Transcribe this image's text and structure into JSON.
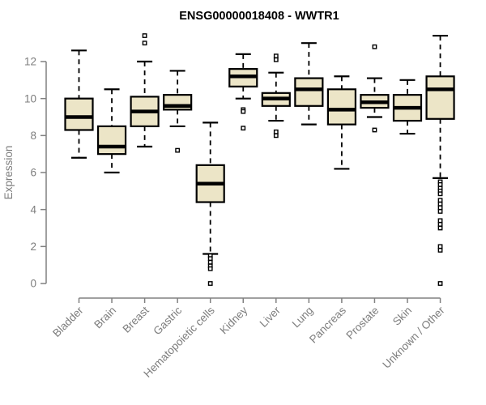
{
  "title": "ENSG00000018408 - WWTR1",
  "colors": {
    "background": "#ffffff",
    "box_fill": "#ECE5C7",
    "box_border": "#000000",
    "median": "#000000",
    "whisker": "#000000",
    "outlier_stroke": "#000000",
    "outlier_fill": "#ffffff",
    "axis": "#808080",
    "label": "#7d7d7d",
    "title": "#000000"
  },
  "chart_data": {
    "type": "boxplot",
    "title": "ENSG00000018408 - WWTR1",
    "xlabel": "",
    "ylabel": "Expression",
    "ylim": [
      0,
      13.5
    ],
    "yticks": [
      0,
      2,
      4,
      6,
      8,
      10,
      12
    ],
    "grid": false,
    "legend": "none",
    "categories": [
      "Bladder",
      "Brain",
      "Breast",
      "Gastric",
      "Hematopoietic cells",
      "Kidney",
      "Liver",
      "Lung",
      "Pancreas",
      "Prostate",
      "Skin",
      "Unknown / Other"
    ],
    "series": [
      {
        "name": "Bladder",
        "whisker_low": 6.8,
        "q1": 8.3,
        "median": 9.0,
        "q3": 10.0,
        "whisker_high": 12.6,
        "outliers": []
      },
      {
        "name": "Brain",
        "whisker_low": 6.0,
        "q1": 7.0,
        "median": 7.4,
        "q3": 8.5,
        "whisker_high": 10.5,
        "outliers": []
      },
      {
        "name": "Breast",
        "whisker_low": 7.4,
        "q1": 8.5,
        "median": 9.3,
        "q3": 10.1,
        "whisker_high": 12.0,
        "outliers": [
          13.4,
          13.0
        ]
      },
      {
        "name": "Gastric",
        "whisker_low": 8.5,
        "q1": 9.4,
        "median": 9.6,
        "q3": 10.2,
        "whisker_high": 11.5,
        "outliers": [
          7.2
        ]
      },
      {
        "name": "Hematopoietic cells",
        "whisker_low": 1.6,
        "q1": 4.4,
        "median": 5.4,
        "q3": 6.4,
        "whisker_high": 8.7,
        "outliers": [
          1.5,
          1.35,
          1.15,
          0.95,
          0.8,
          0
        ]
      },
      {
        "name": "Kidney",
        "whisker_low": 10.0,
        "q1": 10.65,
        "median": 11.2,
        "q3": 11.6,
        "whisker_high": 12.4,
        "outliers": [
          9.4,
          9.3,
          8.4
        ]
      },
      {
        "name": "Liver",
        "whisker_low": 8.8,
        "q1": 9.6,
        "median": 10.0,
        "q3": 10.3,
        "whisker_high": 11.4,
        "outliers": [
          12.3,
          12.1,
          8.2,
          8.0
        ]
      },
      {
        "name": "Lung",
        "whisker_low": 8.6,
        "q1": 9.6,
        "median": 10.5,
        "q3": 11.1,
        "whisker_high": 13.0,
        "outliers": []
      },
      {
        "name": "Pancreas",
        "whisker_low": 6.2,
        "q1": 8.6,
        "median": 9.4,
        "q3": 10.5,
        "whisker_high": 11.2,
        "outliers": []
      },
      {
        "name": "Prostate",
        "whisker_low": 9.0,
        "q1": 9.5,
        "median": 9.8,
        "q3": 10.2,
        "whisker_high": 11.1,
        "outliers": [
          12.8,
          8.3
        ]
      },
      {
        "name": "Skin",
        "whisker_low": 8.1,
        "q1": 8.8,
        "median": 9.5,
        "q3": 10.2,
        "whisker_high": 11.0,
        "outliers": []
      },
      {
        "name": "Unknown / Other",
        "whisker_low": 5.7,
        "q1": 8.9,
        "median": 10.5,
        "q3": 11.2,
        "whisker_high": 13.4,
        "outliers": [
          5.5,
          5.35,
          5.15,
          5.0,
          4.85,
          4.5,
          4.3,
          4.1,
          3.9,
          3.4,
          3.2,
          3.0,
          2.0,
          1.8,
          0
        ]
      }
    ]
  }
}
